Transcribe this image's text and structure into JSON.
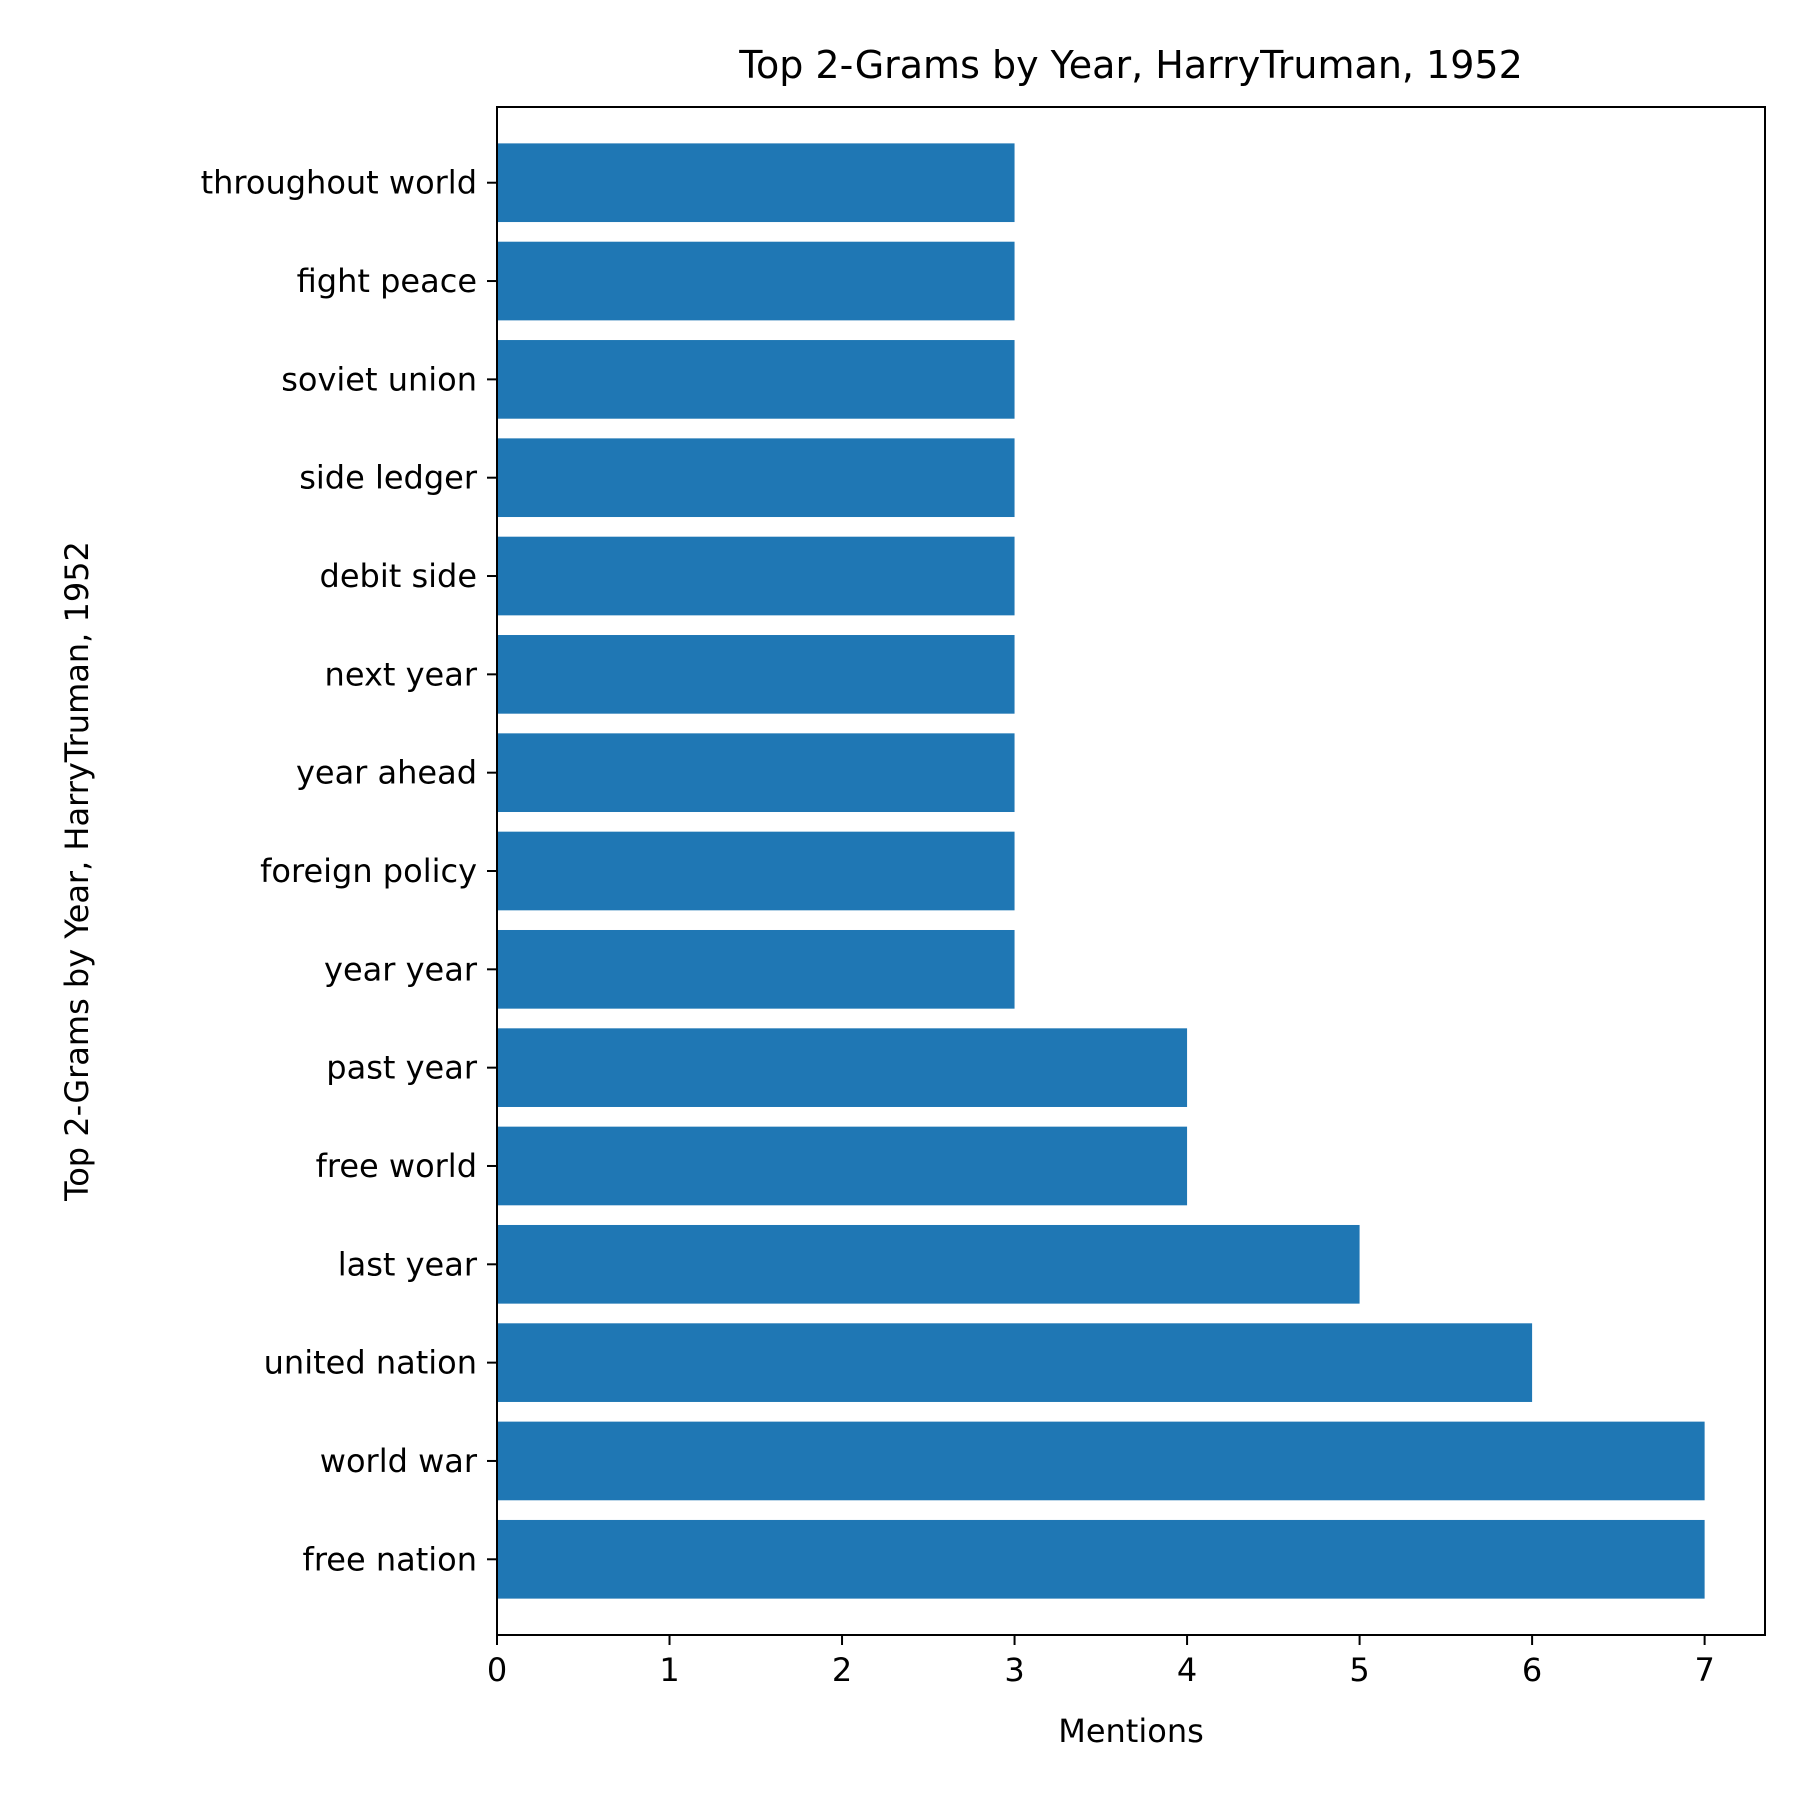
{
  "chart_data": {
    "type": "bar",
    "orientation": "horizontal",
    "title": "Top 2-Grams by Year, HarryTruman, 1952",
    "xlabel": "Mentions",
    "ylabel": "Top 2-Grams by Year, HarryTruman, 1952",
    "categories": [
      "free nation",
      "world war",
      "united nation",
      "last year",
      "free world",
      "past year",
      "year year",
      "foreign policy",
      "year ahead",
      "next year",
      "debit side",
      "side ledger",
      "soviet union",
      "fight peace",
      "throughout world"
    ],
    "values": [
      7,
      7,
      6,
      5,
      4,
      4,
      3,
      3,
      3,
      3,
      3,
      3,
      3,
      3,
      3
    ],
    "xlim": [
      0,
      7.35
    ],
    "xticks": [
      0,
      1,
      2,
      3,
      4,
      5,
      6,
      7
    ],
    "bar_color": "#1f77b4",
    "grid": false,
    "legend": "none"
  }
}
